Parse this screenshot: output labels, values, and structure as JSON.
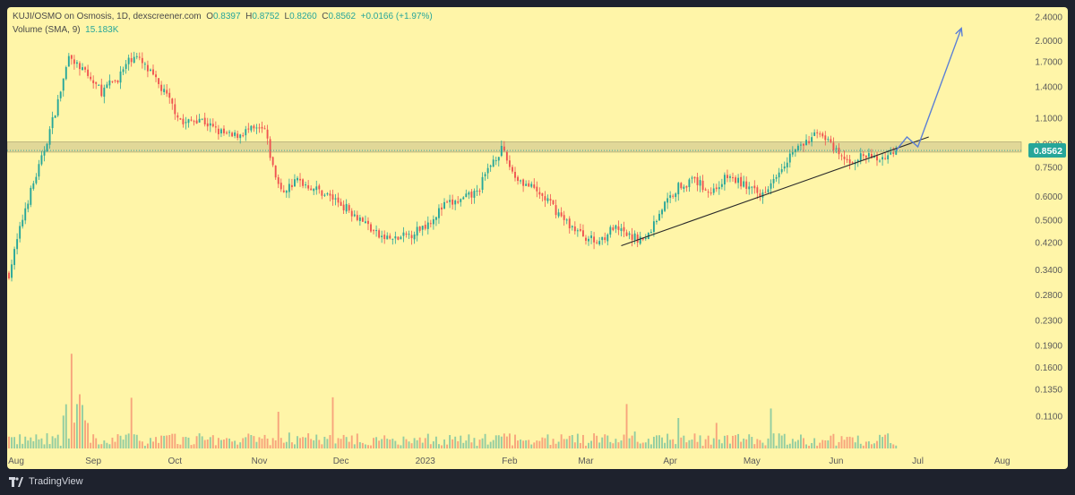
{
  "header": {
    "symbol_line": "KUJI/OSMO on Osmosis, 1D, dexscreener.com",
    "o_label": "O",
    "o_value": "0.8397",
    "h_label": "H",
    "h_value": "0.8752",
    "l_label": "L",
    "l_value": "0.8260",
    "c_label": "C",
    "c_value": "0.8562",
    "change": "+0.0166 (+1.97%)",
    "volume_label": "Volume (SMA, 9)",
    "volume_value": "15.183K"
  },
  "footer": {
    "brand": "TradingView"
  },
  "colors": {
    "background": "#fff5a8",
    "frame": "#1e222d",
    "up": "#26a69a",
    "down": "#ef5350",
    "zone": "#c8c08a",
    "trendline": "#2a2a2a",
    "projection": "#5b7fd6",
    "price_tag": "#26a69a"
  },
  "chart_data": {
    "type": "candlestick",
    "y_scale": "log",
    "ylim": [
      0.095,
      2.45
    ],
    "y_ticks": [
      "2.4000",
      "2.0000",
      "1.7000",
      "1.4000",
      "1.1000",
      "0.9000",
      "0.7500",
      "0.6000",
      "0.5000",
      "0.4200",
      "0.3400",
      "0.2800",
      "0.2300",
      "0.1900",
      "0.1600",
      "0.1350",
      "0.1100"
    ],
    "x_ticks": [
      "Aug",
      "Sep",
      "Oct",
      "Nov",
      "Dec",
      "2023",
      "Feb",
      "Mar",
      "Apr",
      "May",
      "Jun",
      "Jul",
      "Aug"
    ],
    "last_price": "0.8562",
    "last_price_value": 0.8562,
    "resistance_zone": [
      0.845,
      0.915
    ],
    "price_path": [
      {
        "x": 0,
        "close": 0.33
      },
      {
        "x": 6,
        "close": 0.55
      },
      {
        "x": 12,
        "close": 0.8
      },
      {
        "x": 18,
        "close": 1.25
      },
      {
        "x": 22,
        "close": 1.75
      },
      {
        "x": 28,
        "close": 1.55
      },
      {
        "x": 34,
        "close": 1.35
      },
      {
        "x": 40,
        "close": 1.5
      },
      {
        "x": 46,
        "close": 1.8
      },
      {
        "x": 52,
        "close": 1.55
      },
      {
        "x": 58,
        "close": 1.3
      },
      {
        "x": 64,
        "close": 1.05
      },
      {
        "x": 70,
        "close": 1.1
      },
      {
        "x": 76,
        "close": 1.0
      },
      {
        "x": 82,
        "close": 0.95
      },
      {
        "x": 88,
        "close": 1.0
      },
      {
        "x": 94,
        "close": 1.0
      },
      {
        "x": 97,
        "close": 0.75
      },
      {
        "x": 100,
        "close": 0.62
      },
      {
        "x": 106,
        "close": 0.68
      },
      {
        "x": 112,
        "close": 0.64
      },
      {
        "x": 118,
        "close": 0.6
      },
      {
        "x": 124,
        "close": 0.55
      },
      {
        "x": 130,
        "close": 0.5
      },
      {
        "x": 136,
        "close": 0.44
      },
      {
        "x": 142,
        "close": 0.43
      },
      {
        "x": 148,
        "close": 0.45
      },
      {
        "x": 154,
        "close": 0.49
      },
      {
        "x": 160,
        "close": 0.56
      },
      {
        "x": 166,
        "close": 0.58
      },
      {
        "x": 172,
        "close": 0.62
      },
      {
        "x": 178,
        "close": 0.8
      },
      {
        "x": 181,
        "close": 0.86
      },
      {
        "x": 186,
        "close": 0.7
      },
      {
        "x": 192,
        "close": 0.64
      },
      {
        "x": 198,
        "close": 0.58
      },
      {
        "x": 204,
        "close": 0.5
      },
      {
        "x": 210,
        "close": 0.45
      },
      {
        "x": 216,
        "close": 0.42
      },
      {
        "x": 222,
        "close": 0.47
      },
      {
        "x": 228,
        "close": 0.44
      },
      {
        "x": 234,
        "close": 0.43
      },
      {
        "x": 240,
        "close": 0.55
      },
      {
        "x": 246,
        "close": 0.65
      },
      {
        "x": 252,
        "close": 0.68
      },
      {
        "x": 258,
        "close": 0.62
      },
      {
        "x": 264,
        "close": 0.7
      },
      {
        "x": 270,
        "close": 0.66
      },
      {
        "x": 276,
        "close": 0.6
      },
      {
        "x": 282,
        "close": 0.72
      },
      {
        "x": 288,
        "close": 0.85
      },
      {
        "x": 294,
        "close": 0.92
      },
      {
        "x": 298,
        "close": 1.0
      },
      {
        "x": 303,
        "close": 0.86
      },
      {
        "x": 308,
        "close": 0.78
      },
      {
        "x": 314,
        "close": 0.82
      },
      {
        "x": 320,
        "close": 0.8
      },
      {
        "x": 326,
        "close": 0.8562
      }
    ],
    "projection_path": [
      {
        "x": 326,
        "close": 0.8562
      },
      {
        "x": 330,
        "close": 0.95
      },
      {
        "x": 334,
        "close": 0.88
      },
      {
        "x": 350,
        "close": 2.2
      }
    ],
    "trendline": [
      {
        "x": 225,
        "close": 0.41
      },
      {
        "x": 338,
        "close": 0.95
      }
    ]
  }
}
